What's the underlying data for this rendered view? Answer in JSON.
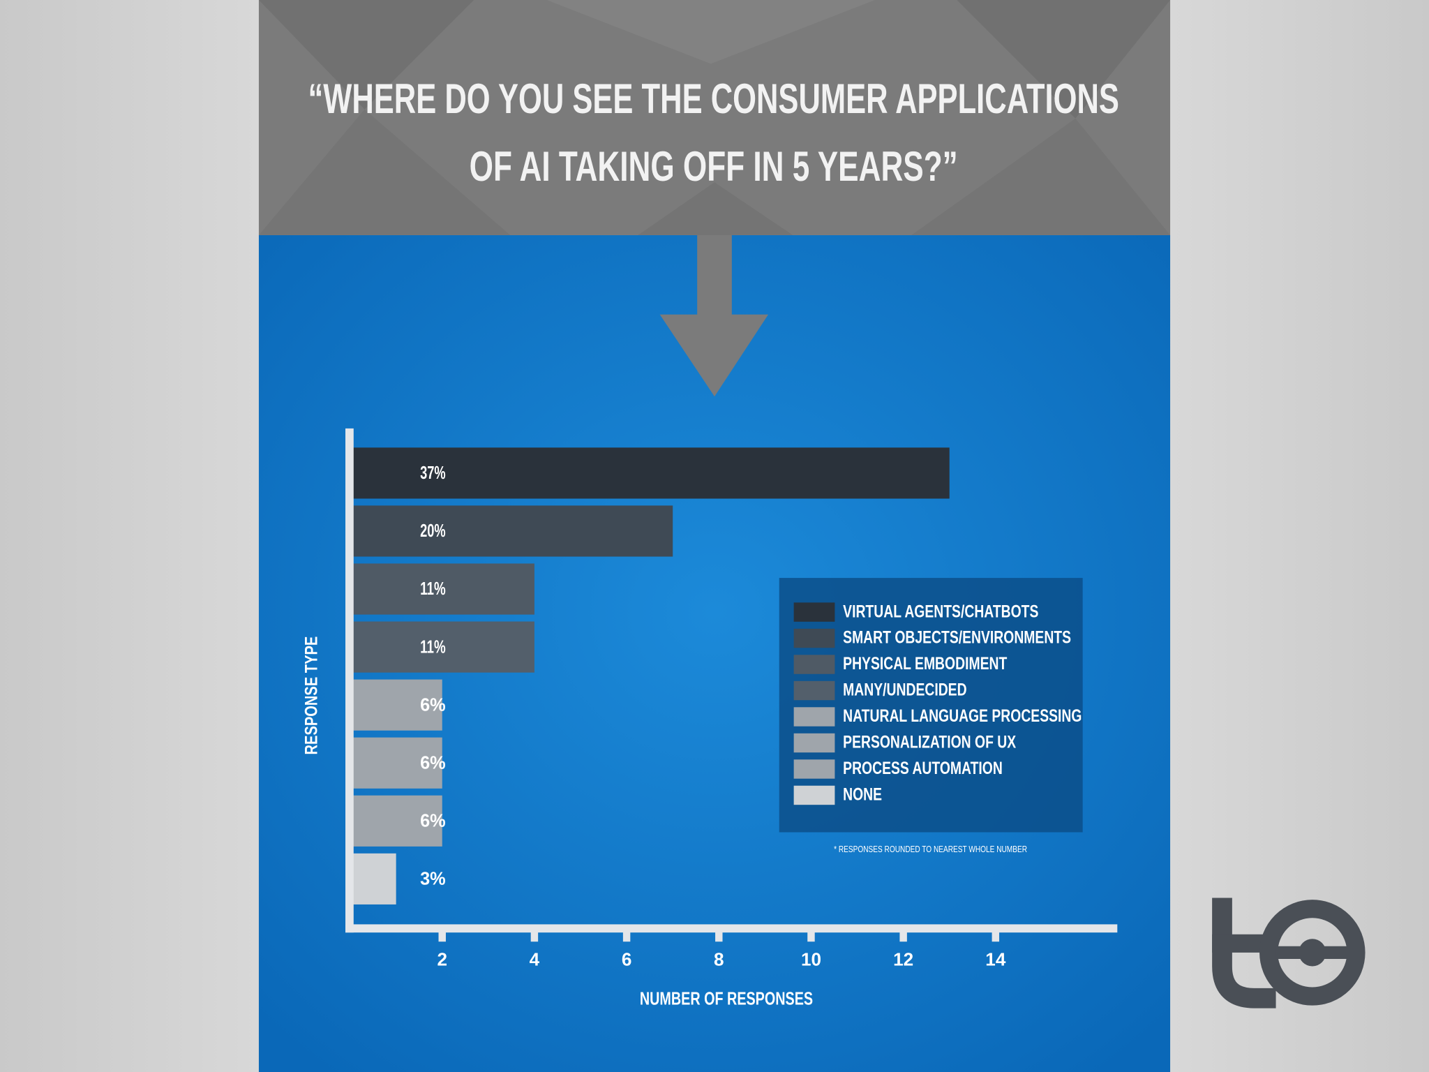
{
  "chart_data": {
    "type": "bar",
    "orientation": "horizontal",
    "title": [
      "“WHERE DO YOU SEE THE CONSUMER APPLICATIONS",
      "OF AI TAKING OFF IN 5 YEARS?”"
    ],
    "xlabel": "NUMBER OF RESPONSES",
    "ylabel": "RESPONSE TYPE",
    "categories": [
      "VIRTUAL AGENTS/CHATBOTS",
      "SMART OBJECTS/ENVIRONMENTS",
      "PHYSICAL EMBODIMENT",
      "MANY/UNDECIDED",
      "NATURAL LANGUAGE PROCESSING",
      "PERSONALIZATION OF UX",
      "PROCESS AUTOMATION",
      "NONE"
    ],
    "values": [
      13,
      7,
      4,
      4,
      2,
      2,
      2,
      1
    ],
    "value_labels": [
      "37%",
      "20%",
      "11%",
      "11%",
      "6%",
      "6%",
      "6%",
      "3%"
    ],
    "colors": [
      "#2a323b",
      "#3f4a55",
      "#4f5a65",
      "#535f6b",
      "#9fa5ab",
      "#9fa5ab",
      "#9fa5ab",
      "#cfd2d5"
    ],
    "xlim": [
      0,
      16.64
    ],
    "xticks": [
      2,
      4,
      6,
      8,
      10,
      12,
      14
    ],
    "grid": false,
    "legend": "right",
    "note": "* RESPONSES ROUNDED TO NEAREST WHOLE NUMBER"
  }
}
